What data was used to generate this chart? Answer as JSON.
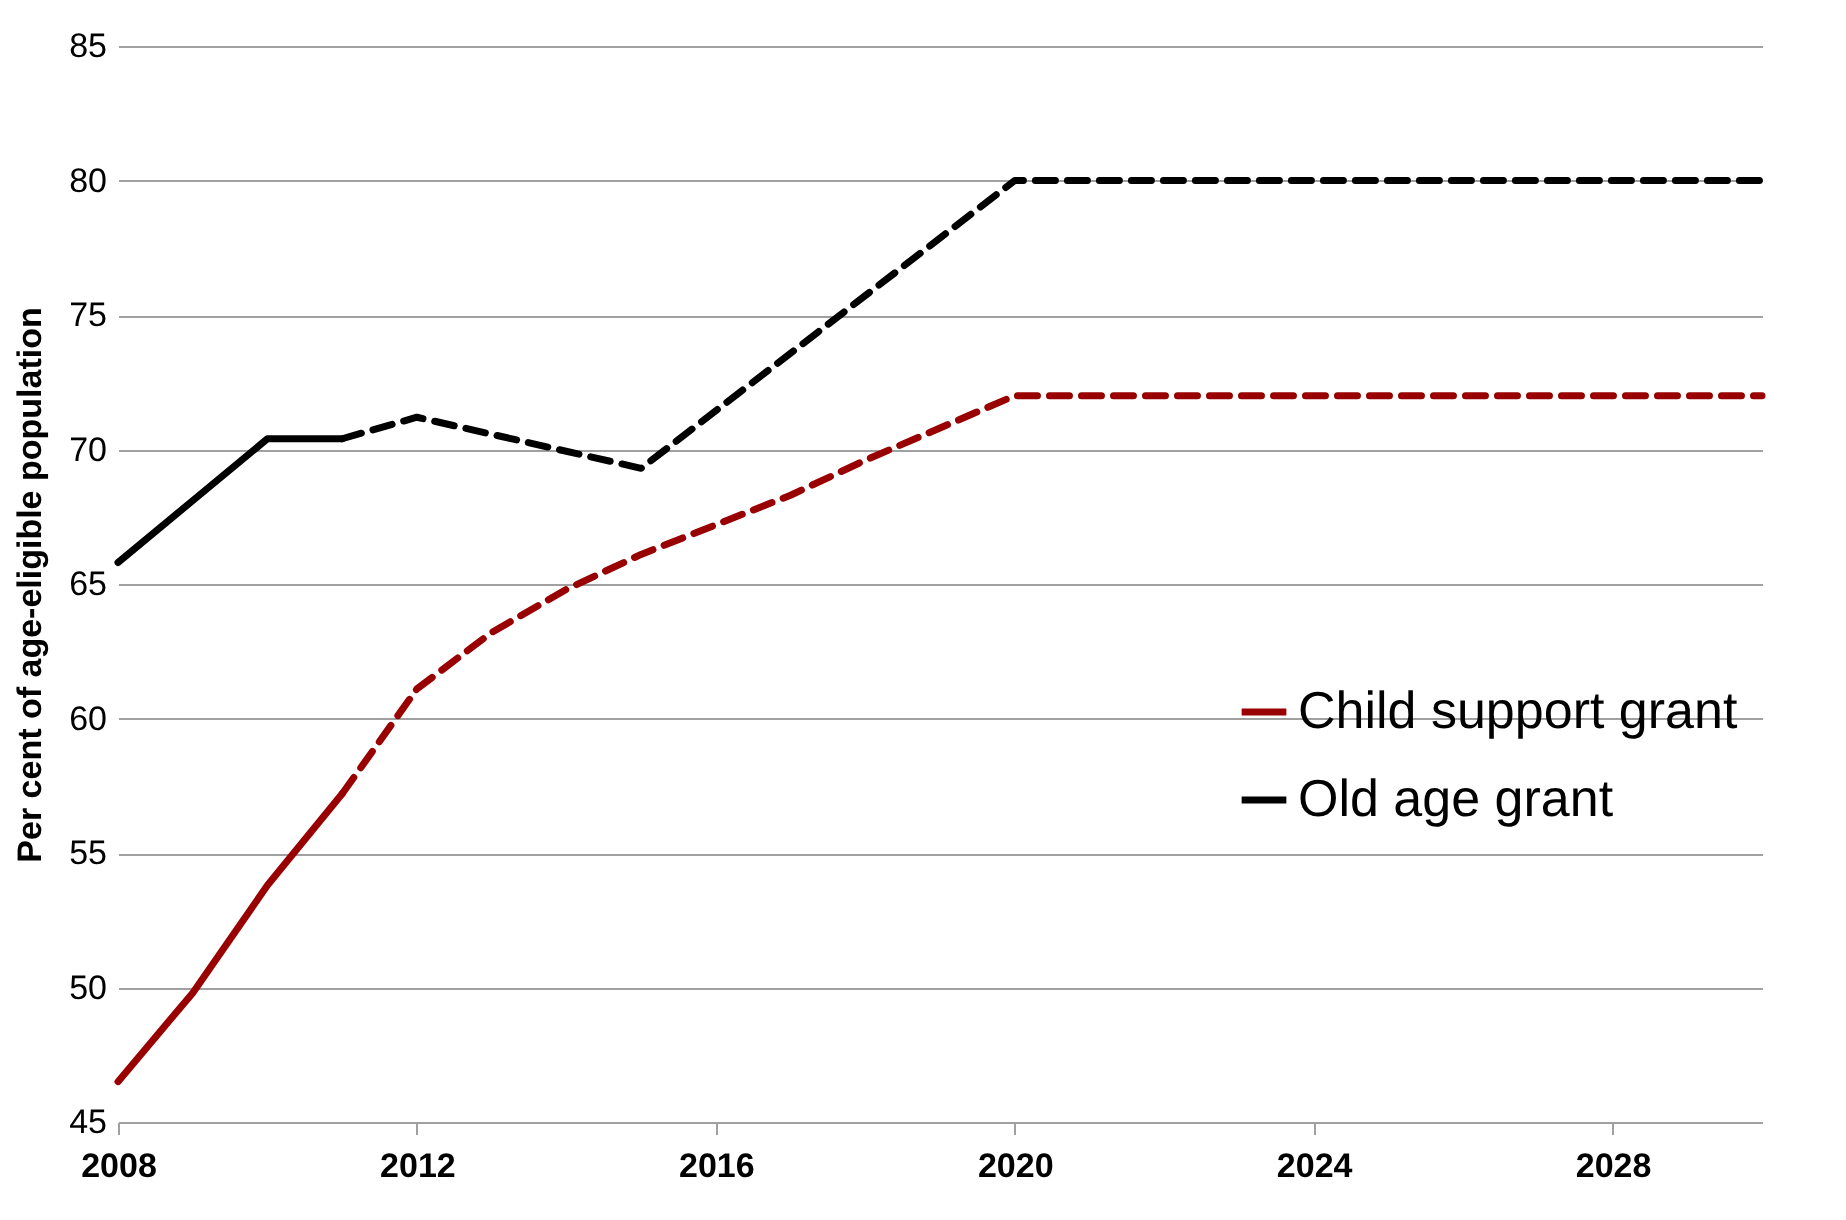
{
  "chart_data": {
    "type": "line",
    "ylabel": "Per cent of age-eligible population",
    "xlim": [
      2008,
      2030
    ],
    "xticks": [
      2008,
      2012,
      2016,
      2020,
      2024,
      2028
    ],
    "ylim": [
      45,
      85
    ],
    "yticks": [
      45,
      50,
      55,
      60,
      65,
      70,
      75,
      80,
      85
    ],
    "grid": "y",
    "legend": "right",
    "marker": "none",
    "series": [
      {
        "name": "Child support grant",
        "color": "#990000",
        "line_style": "solid",
        "x": [
          2008,
          2009,
          2010,
          2011
        ],
        "values": [
          46.5,
          49.8,
          53.8,
          57.2
        ]
      },
      {
        "color": "#990000",
        "line_style": "dashed",
        "x": [
          2011,
          2012,
          2013,
          2014,
          2015,
          2016,
          2017,
          2018,
          2019,
          2020,
          2030
        ],
        "values": [
          57.2,
          61.1,
          63.2,
          64.8,
          66.1,
          67.2,
          68.3,
          69.6,
          70.8,
          72,
          72
        ]
      },
      {
        "name": "Old age grant",
        "color": "#000000",
        "line_style": "solid",
        "x": [
          2008,
          2009,
          2010,
          2011
        ],
        "values": [
          65.8,
          68.1,
          70.4,
          70.4
        ]
      },
      {
        "color": "#000000",
        "line_style": "dashed",
        "x": [
          2011,
          2012,
          2015,
          2020,
          2030
        ],
        "values": [
          70.4,
          71.2,
          69.3,
          80,
          80
        ]
      }
    ]
  }
}
